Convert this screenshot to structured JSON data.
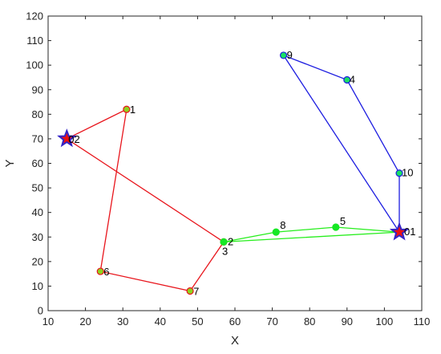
{
  "chart_data": {
    "type": "scatter",
    "title": "",
    "xlabel": "X",
    "ylabel": "Y",
    "xlim": [
      10,
      110
    ],
    "ylim": [
      0,
      120
    ],
    "xticks": [
      10,
      20,
      30,
      40,
      50,
      60,
      70,
      80,
      90,
      100,
      110
    ],
    "yticks": [
      0,
      10,
      20,
      30,
      40,
      50,
      60,
      70,
      80,
      90,
      100,
      110,
      120
    ],
    "grid": false,
    "points": [
      {
        "id": "1",
        "x": 31,
        "y": 82
      },
      {
        "id": "2",
        "x": 57,
        "y": 28
      },
      {
        "id": "3",
        "x": 57,
        "y": 28
      },
      {
        "id": "4",
        "x": 90,
        "y": 94
      },
      {
        "id": "5",
        "x": 87,
        "y": 34
      },
      {
        "id": "6",
        "x": 24,
        "y": 16
      },
      {
        "id": "7",
        "x": 48,
        "y": 8
      },
      {
        "id": "8",
        "x": 71,
        "y": 32
      },
      {
        "id": "9",
        "x": 73,
        "y": 104
      },
      {
        "id": "10",
        "x": 104,
        "y": 56
      }
    ],
    "depots": [
      {
        "id": "01",
        "x": 104,
        "y": 32
      },
      {
        "id": "02",
        "x": 15,
        "y": 70
      }
    ],
    "routes": [
      {
        "color": "#e8141b",
        "marker_fill": "#8fd31e",
        "marker_edge": "#e8141b",
        "path": [
          "02",
          "1",
          "6",
          "7",
          "3",
          "02"
        ]
      },
      {
        "color": "#26ee1c",
        "marker_fill": "#16e825",
        "marker_edge": "#16e825",
        "path": [
          "01",
          "5",
          "8",
          "2",
          "01"
        ]
      },
      {
        "color": "#1d1de0",
        "marker_fill": "#19e064",
        "marker_edge": "#1d1de0",
        "path": [
          "01",
          "9",
          "4",
          "10",
          "01"
        ]
      }
    ],
    "depot_style": {
      "fill": "#ee1010",
      "edge": "#3325c8"
    }
  }
}
